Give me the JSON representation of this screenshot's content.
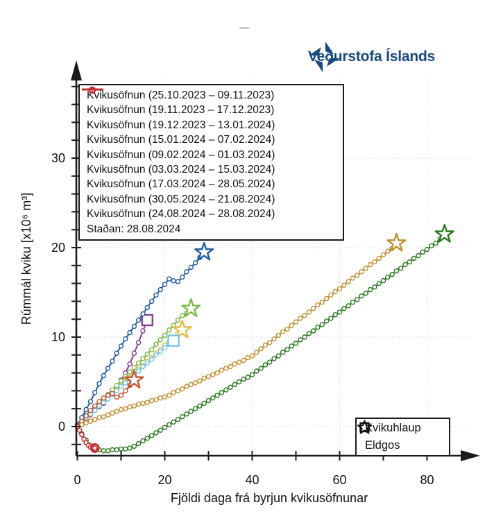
{
  "logo": {
    "text": "Veðurstofa Íslands",
    "color": "#17497f"
  },
  "chart_data": {
    "type": "line",
    "title": "",
    "xlabel": "Fjöldi daga frá byrjun kvikusöfnunar",
    "ylabel": "Rúmmál kviku [x10⁶ m³]",
    "xlim": [
      0,
      92
    ],
    "ylim": [
      -3.5,
      40
    ],
    "xticks_labeled": [
      0,
      20,
      40,
      60,
      80
    ],
    "xtick_minor_step": 10,
    "yticks_labeled": [
      0,
      10,
      20,
      30
    ],
    "ytick_minor_step": 2,
    "grid": {
      "x": [
        20,
        40,
        60,
        80
      ],
      "y": [
        0,
        10,
        20,
        30
      ],
      "style": "dotted",
      "color": "#d2d2d2"
    },
    "axis_color": "#1a1a1a",
    "series": [
      {
        "label": "Kvikusöfnun (25.10.2023 – 09.11.2023)",
        "color": "#8a3c96",
        "end_marker": "square",
        "y": [
          0.1,
          0.5,
          0.9,
          1.3,
          1.8,
          2.2,
          2.6,
          3.1,
          3.7,
          4.4,
          5.2,
          6.0,
          7.0,
          8.2,
          9.4,
          10.7,
          11.9
        ]
      },
      {
        "label": "Kvikusöfnun (19.11.2023 – 17.12.2023)",
        "color": "#1b5ca5",
        "end_marker": "star",
        "y": [
          0.2,
          1.0,
          1.9,
          2.8,
          3.8,
          4.8,
          5.7,
          6.5,
          7.3,
          8.2,
          9.0,
          9.8,
          10.5,
          11.2,
          11.9,
          12.6,
          13.3,
          14.0,
          14.7,
          15.3,
          15.9,
          16.5,
          16.3,
          16.2,
          16.7,
          17.3,
          17.8,
          18.3,
          18.9,
          19.5
        ]
      },
      {
        "label": "Kvikusöfnun (19.12.2023 – 13.01.2024)",
        "color": "#79b942",
        "end_marker": "star",
        "y": [
          0.1,
          0.6,
          1.1,
          1.6,
          2.1,
          2.6,
          3.1,
          3.6,
          4.1,
          4.6,
          5.1,
          5.6,
          6.1,
          6.6,
          7.1,
          7.6,
          8.1,
          8.6,
          9.2,
          9.7,
          10.2,
          10.8,
          11.3,
          11.9,
          12.4,
          12.7,
          13.2
        ]
      },
      {
        "label": "Kvikusöfnun (15.01.2024 – 07.02.2024)",
        "color": "#e6bc3f",
        "end_marker": "star",
        "y": [
          0.1,
          0.5,
          1.0,
          1.4,
          1.9,
          2.3,
          2.8,
          3.2,
          3.7,
          4.1,
          4.6,
          5.0,
          5.5,
          5.9,
          6.4,
          6.8,
          7.3,
          7.7,
          8.2,
          8.6,
          9.1,
          9.5,
          10.0,
          10.4,
          10.8
        ]
      },
      {
        "label": "Kvikusöfnun (09.02.2024 – 01.03.2024)",
        "color": "#70c7e8",
        "end_marker": "square",
        "y": [
          0.1,
          0.5,
          1.0,
          1.4,
          1.8,
          2.3,
          2.7,
          3.1,
          3.6,
          4.0,
          4.5,
          4.9,
          5.3,
          5.8,
          6.2,
          6.7,
          7.1,
          7.5,
          8.0,
          8.4,
          8.8,
          9.2,
          9.6
        ]
      },
      {
        "label": "Kvikusöfnun (03.03.2024 – 15.03.2024)",
        "color": "#c75431",
        "end_marker": "star",
        "y": [
          0.1,
          0.6,
          1.2,
          1.8,
          2.3,
          2.8,
          3.2,
          3.5,
          3.7,
          3.3,
          3.5,
          4.0,
          4.6,
          5.2
        ]
      },
      {
        "label": "Kvikusöfnun (17.03.2024 – 28.05.2024)",
        "color": "#c18f2e",
        "end_marker": "star",
        "y": [
          0.0,
          0.2,
          0.4,
          0.6,
          0.8,
          1.0,
          1.1,
          1.3,
          1.5,
          1.7,
          1.9,
          2.0,
          2.2,
          2.3,
          2.5,
          2.6,
          2.7,
          2.9,
          3.0,
          3.2,
          3.3,
          3.5,
          3.8,
          4.0,
          4.2,
          4.5,
          4.7,
          4.9,
          5.1,
          5.4,
          5.6,
          5.8,
          6.0,
          6.3,
          6.5,
          6.7,
          7.0,
          7.2,
          7.4,
          7.7,
          7.9,
          8.3,
          8.7,
          9.1,
          9.4,
          9.8,
          10.2,
          10.6,
          10.9,
          11.3,
          11.7,
          12.1,
          12.4,
          12.8,
          13.2,
          13.6,
          13.9,
          14.3,
          14.7,
          15.1,
          15.4,
          15.8,
          16.2,
          16.6,
          16.9,
          17.3,
          17.7,
          18.1,
          18.4,
          18.8,
          19.2,
          19.6,
          19.9,
          20.5
        ]
      },
      {
        "label": "Kvikusöfnun (30.05.2024 – 21.08.2024)",
        "color": "#27791d",
        "end_marker": "star",
        "y": [
          0.0,
          -0.8,
          -1.5,
          -2.1,
          -2.4,
          -2.6,
          -2.7,
          -2.7,
          -2.6,
          -2.6,
          -2.5,
          -2.5,
          -2.4,
          -2.2,
          -1.9,
          -1.6,
          -1.3,
          -1.0,
          -0.7,
          -0.4,
          -0.1,
          0.2,
          0.5,
          0.8,
          1.1,
          1.4,
          1.7,
          2.0,
          2.3,
          2.6,
          2.9,
          3.2,
          3.5,
          3.8,
          4.1,
          4.4,
          4.7,
          5.0,
          5.3,
          5.5,
          5.8,
          6.2,
          6.5,
          6.9,
          7.2,
          7.6,
          7.9,
          8.3,
          8.6,
          9.0,
          9.3,
          9.7,
          10.0,
          10.4,
          10.7,
          11.1,
          11.4,
          11.8,
          12.1,
          12.5,
          12.8,
          13.2,
          13.5,
          13.9,
          14.2,
          14.6,
          14.9,
          15.3,
          15.6,
          16.0,
          16.3,
          16.7,
          17.0,
          17.4,
          17.7,
          18.1,
          18.4,
          18.8,
          19.1,
          19.5,
          19.8,
          20.2,
          20.5,
          21.0,
          21.5
        ]
      },
      {
        "label": "Kvikusöfnun (24.08.2024 – 28.08.2024)",
        "color": "#c9252b",
        "end_marker": null,
        "x": [
          0,
          0.5,
          1.0,
          1.5,
          2.0,
          2.5,
          3.0,
          3.5,
          4.0
        ],
        "y": [
          0.0,
          -0.4,
          -0.9,
          -1.4,
          -1.8,
          -2.1,
          -2.3,
          -2.4,
          -2.4
        ]
      }
    ],
    "status_point": {
      "label": "Staðan: 28.08.2024",
      "color": "#c9252b",
      "x": 4.0,
      "y": -2.4
    },
    "marker_legend": [
      {
        "marker": "square",
        "label": "Kvikuhlaup"
      },
      {
        "marker": "star",
        "label": "Eldgos"
      }
    ],
    "legend_position": "upper-left",
    "marker_legend_position": "lower-right"
  }
}
